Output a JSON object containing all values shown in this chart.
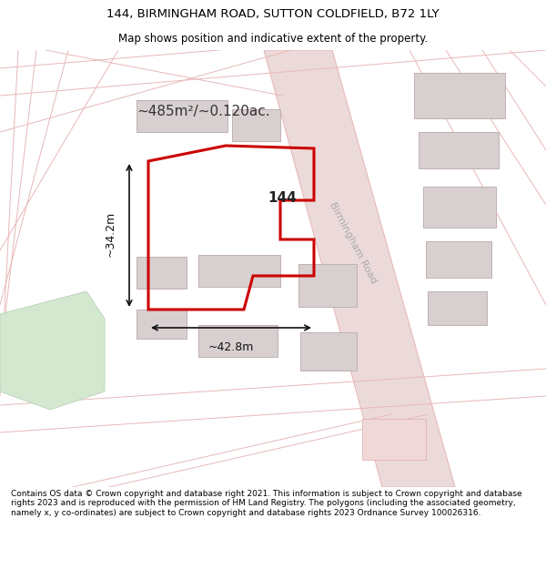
{
  "title_line1": "144, BIRMINGHAM ROAD, SUTTON COLDFIELD, B72 1LY",
  "title_line2": "Map shows position and indicative extent of the property.",
  "copyright_text": "Contains OS data © Crown copyright and database right 2021. This information is subject to Crown copyright and database rights 2023 and is reproduced with the permission of HM Land Registry. The polygons (including the associated geometry, namely x, y co-ordinates) are subject to Crown copyright and database rights 2023 Ordnance Survey 100026316.",
  "area_label": "~485m²/~0.120ac.",
  "property_number": "144",
  "road_label": "Birmingham Road",
  "dim_h": "~42.8m",
  "dim_v": "~34.2m",
  "map_bg": "#f0ecec",
  "road_color": "#e8b8b8",
  "road_fill": "#ecdada",
  "building_fill": "#d8d0d0",
  "building_edge": "#c0b0b0",
  "green_fill": "#d4e8d0",
  "green_edge": "#b0ccb0",
  "property_color": "#cc0000",
  "dim_color": "#111111",
  "title_fontsize": 9.5,
  "subtitle_fontsize": 8.5,
  "copyright_fontsize": 6.5,
  "area_fontsize": 11,
  "prop_num_fontsize": 11,
  "road_label_fontsize": 8,
  "dim_fontsize": 9
}
